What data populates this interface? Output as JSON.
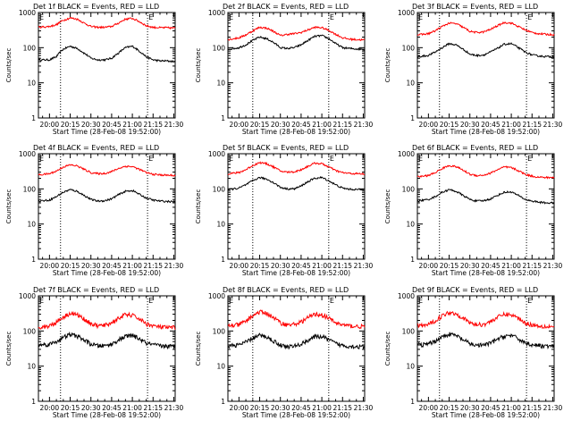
{
  "figure": {
    "xtitle": "Start Time (28-Feb-08 19:52:00)",
    "ytitle": "Counts/sec",
    "ytick_labels": [
      "1",
      "10",
      "100",
      "1000"
    ],
    "xtick_labels": [
      "20:00",
      "20:15",
      "20:30",
      "20:45",
      "21:00",
      "21:15",
      "21:30"
    ],
    "colors": {
      "events": "#000000",
      "lld": "#ff0000",
      "axes": "#000000",
      "background": "#ffffff"
    },
    "flags": [
      "E",
      "E"
    ]
  },
  "chart_data": [
    {
      "type": "line",
      "title": "Det 1f BLACK = Events, RED = LLD",
      "ylog": true,
      "ylim": [
        1,
        1000
      ],
      "x_range": [
        "19:52",
        "21:31"
      ],
      "x": [
        "19:52",
        "20:00",
        "20:05",
        "20:10",
        "20:15",
        "20:20",
        "20:25",
        "20:30",
        "20:35",
        "20:40",
        "20:45",
        "20:50",
        "20:55",
        "21:00",
        "21:05",
        "21:10",
        "21:15",
        "21:20",
        "21:25",
        "21:31"
      ],
      "series": [
        {
          "name": "Events",
          "color": "#000000",
          "values": [
            45,
            45,
            55,
            90,
            110,
            95,
            70,
            50,
            45,
            45,
            50,
            70,
            100,
            110,
            80,
            55,
            45,
            42,
            42,
            40
          ]
        },
        {
          "name": "LLD",
          "color": "#ff0000",
          "values": [
            380,
            400,
            450,
            600,
            700,
            650,
            500,
            400,
            380,
            380,
            400,
            500,
            650,
            680,
            550,
            420,
            380,
            370,
            370,
            360
          ]
        }
      ],
      "vlines": [
        "20:08",
        "21:11"
      ]
    },
    {
      "type": "line",
      "title": "Det 2f BLACK = Events, RED = LLD",
      "ylog": true,
      "ylim": [
        1,
        1000
      ],
      "x_range": [
        "19:52",
        "21:31"
      ],
      "x": [
        "19:52",
        "20:00",
        "20:05",
        "20:10",
        "20:15",
        "20:20",
        "20:25",
        "20:30",
        "20:35",
        "20:40",
        "20:45",
        "20:50",
        "20:55",
        "21:00",
        "21:05",
        "21:10",
        "21:15",
        "21:20",
        "21:25",
        "21:31"
      ],
      "series": [
        {
          "name": "Events",
          "color": "#000000",
          "values": [
            90,
            100,
            120,
            160,
            200,
            180,
            140,
            100,
            95,
            100,
            120,
            160,
            210,
            220,
            180,
            130,
            100,
            95,
            92,
            90
          ]
        },
        {
          "name": "LLD",
          "color": "#ff0000",
          "values": [
            170,
            190,
            230,
            300,
            380,
            360,
            290,
            220,
            240,
            250,
            270,
            320,
            380,
            370,
            310,
            240,
            190,
            175,
            170,
            165
          ]
        }
      ],
      "vlines": [
        "20:10",
        "21:05"
      ]
    },
    {
      "type": "line",
      "title": "Det 3f BLACK = Events, RED = LLD",
      "ylog": true,
      "ylim": [
        1,
        1000
      ],
      "x_range": [
        "19:52",
        "21:31"
      ],
      "x": [
        "19:52",
        "20:00",
        "20:05",
        "20:10",
        "20:15",
        "20:20",
        "20:25",
        "20:30",
        "20:35",
        "20:40",
        "20:45",
        "20:50",
        "20:55",
        "21:00",
        "21:05",
        "21:10",
        "21:15",
        "21:20",
        "21:25",
        "21:31"
      ],
      "series": [
        {
          "name": "Events",
          "color": "#000000",
          "values": [
            55,
            60,
            75,
            100,
            130,
            120,
            90,
            65,
            60,
            62,
            75,
            95,
            125,
            130,
            100,
            75,
            62,
            58,
            56,
            55
          ]
        },
        {
          "name": "LLD",
          "color": "#ff0000",
          "values": [
            230,
            250,
            300,
            400,
            500,
            480,
            380,
            290,
            270,
            280,
            330,
            420,
            520,
            500,
            400,
            320,
            270,
            250,
            240,
            235
          ]
        }
      ],
      "vlines": [
        "20:08",
        "21:11"
      ]
    },
    {
      "type": "line",
      "title": "Det 4f BLACK = Events, RED = LLD",
      "ylog": true,
      "ylim": [
        1,
        1000
      ],
      "x_range": [
        "19:52",
        "21:31"
      ],
      "x": [
        "19:52",
        "20:00",
        "20:05",
        "20:10",
        "20:15",
        "20:20",
        "20:25",
        "20:30",
        "20:35",
        "20:40",
        "20:45",
        "20:50",
        "20:55",
        "21:00",
        "21:05",
        "21:10",
        "21:15",
        "21:20",
        "21:25",
        "21:31"
      ],
      "series": [
        {
          "name": "Events",
          "color": "#000000",
          "values": [
            45,
            48,
            60,
            80,
            95,
            85,
            65,
            50,
            45,
            46,
            52,
            68,
            85,
            90,
            70,
            55,
            48,
            45,
            44,
            43
          ]
        },
        {
          "name": "LLD",
          "color": "#ff0000",
          "values": [
            250,
            270,
            320,
            420,
            480,
            450,
            360,
            290,
            270,
            275,
            310,
            380,
            440,
            430,
            360,
            290,
            260,
            250,
            245,
            240
          ]
        }
      ],
      "vlines": [
        "20:08",
        "21:11"
      ]
    },
    {
      "type": "line",
      "title": "Det 5f BLACK = Events, RED = LLD",
      "ylog": true,
      "ylim": [
        1,
        1000
      ],
      "x_range": [
        "19:52",
        "21:31"
      ],
      "x": [
        "19:52",
        "20:00",
        "20:05",
        "20:10",
        "20:15",
        "20:20",
        "20:25",
        "20:30",
        "20:35",
        "20:40",
        "20:45",
        "20:50",
        "20:55",
        "21:00",
        "21:05",
        "21:10",
        "21:15",
        "21:20",
        "21:25",
        "21:31"
      ],
      "series": [
        {
          "name": "Events",
          "color": "#000000",
          "values": [
            95,
            105,
            130,
            170,
            210,
            190,
            150,
            110,
            100,
            100,
            120,
            160,
            200,
            210,
            170,
            130,
            105,
            98,
            96,
            95
          ]
        },
        {
          "name": "LLD",
          "color": "#ff0000",
          "values": [
            270,
            290,
            350,
            460,
            560,
            520,
            420,
            320,
            300,
            305,
            350,
            440,
            540,
            520,
            420,
            330,
            290,
            275,
            270,
            265
          ]
        }
      ],
      "vlines": [
        "20:10",
        "21:05"
      ]
    },
    {
      "type": "line",
      "title": "Det 6f BLACK = Events, RED = LLD",
      "ylog": true,
      "ylim": [
        1,
        1000
      ],
      "x_range": [
        "19:52",
        "21:31"
      ],
      "x": [
        "19:52",
        "20:00",
        "20:05",
        "20:10",
        "20:15",
        "20:20",
        "20:25",
        "20:30",
        "20:35",
        "20:40",
        "20:45",
        "20:50",
        "20:55",
        "21:00",
        "21:05",
        "21:10",
        "21:15",
        "21:20",
        "21:25",
        "21:31"
      ],
      "series": [
        {
          "name": "Events",
          "color": "#000000",
          "values": [
            45,
            50,
            60,
            80,
            95,
            85,
            65,
            50,
            45,
            46,
            52,
            65,
            80,
            82,
            65,
            50,
            45,
            42,
            40,
            40
          ]
        },
        {
          "name": "LLD",
          "color": "#ff0000",
          "values": [
            220,
            240,
            290,
            380,
            460,
            430,
            340,
            260,
            240,
            245,
            280,
            350,
            420,
            400,
            330,
            260,
            230,
            215,
            210,
            210
          ]
        }
      ],
      "vlines": [
        "20:08",
        "21:11"
      ]
    },
    {
      "type": "line",
      "title": "Det 7f BLACK = Events, RED = LLD",
      "ylog": true,
      "ylim": [
        1,
        1000
      ],
      "x_range": [
        "19:52",
        "21:31"
      ],
      "x": [
        "19:52",
        "20:00",
        "20:05",
        "20:10",
        "20:15",
        "20:20",
        "20:25",
        "20:30",
        "20:35",
        "20:40",
        "20:45",
        "20:50",
        "20:55",
        "21:00",
        "21:05",
        "21:10",
        "21:15",
        "21:20",
        "21:25",
        "21:31"
      ],
      "series": [
        {
          "name": "Events",
          "color": "#000000",
          "values": [
            40,
            42,
            50,
            65,
            80,
            72,
            55,
            42,
            38,
            38,
            42,
            55,
            70,
            75,
            60,
            45,
            40,
            38,
            37,
            36
          ]
        },
        {
          "name": "LLD",
          "color": "#ff0000",
          "values": [
            130,
            140,
            180,
            250,
            320,
            290,
            220,
            160,
            140,
            145,
            170,
            230,
            290,
            280,
            220,
            160,
            140,
            130,
            125,
            125
          ]
        }
      ],
      "vlines": [
        "20:08",
        "21:11"
      ]
    },
    {
      "type": "line",
      "title": "Det 8f BLACK = Events, RED = LLD",
      "ylog": true,
      "ylim": [
        1,
        1000
      ],
      "x_range": [
        "19:52",
        "21:31"
      ],
      "x": [
        "19:52",
        "20:00",
        "20:05",
        "20:10",
        "20:15",
        "20:20",
        "20:25",
        "20:30",
        "20:35",
        "20:40",
        "20:45",
        "20:50",
        "20:55",
        "21:00",
        "21:05",
        "21:10",
        "21:15",
        "21:20",
        "21:25",
        "21:31"
      ],
      "series": [
        {
          "name": "Events",
          "color": "#000000",
          "values": [
            38,
            40,
            48,
            62,
            75,
            68,
            52,
            40,
            36,
            37,
            42,
            55,
            68,
            70,
            56,
            44,
            39,
            37,
            36,
            35
          ]
        },
        {
          "name": "LLD",
          "color": "#ff0000",
          "values": [
            140,
            150,
            190,
            270,
            350,
            320,
            240,
            170,
            150,
            155,
            180,
            240,
            300,
            290,
            230,
            170,
            150,
            140,
            135,
            135
          ]
        }
      ],
      "vlines": [
        "20:10",
        "21:05"
      ]
    },
    {
      "type": "line",
      "title": "Det 9f BLACK = Events, RED = LLD",
      "ylog": true,
      "ylim": [
        1,
        1000
      ],
      "x_range": [
        "19:52",
        "21:31"
      ],
      "x": [
        "19:52",
        "20:00",
        "20:05",
        "20:10",
        "20:15",
        "20:20",
        "20:25",
        "20:30",
        "20:35",
        "20:40",
        "20:45",
        "20:50",
        "20:55",
        "21:00",
        "21:05",
        "21:10",
        "21:15",
        "21:20",
        "21:25",
        "21:31"
      ],
      "series": [
        {
          "name": "Events",
          "color": "#000000",
          "values": [
            40,
            42,
            52,
            68,
            82,
            74,
            56,
            43,
            39,
            40,
            45,
            58,
            72,
            75,
            60,
            46,
            41,
            38,
            37,
            36
          ]
        },
        {
          "name": "LLD",
          "color": "#ff0000",
          "values": [
            140,
            150,
            195,
            270,
            340,
            310,
            235,
            170,
            150,
            155,
            185,
            245,
            300,
            290,
            230,
            170,
            150,
            140,
            135,
            135
          ]
        }
      ],
      "vlines": [
        "20:08",
        "21:11"
      ]
    }
  ]
}
